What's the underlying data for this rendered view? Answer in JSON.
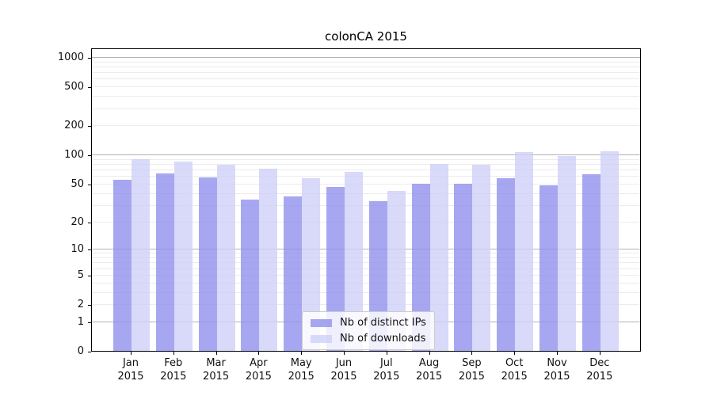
{
  "title": "colonCA 2015",
  "chart_data": {
    "type": "bar",
    "title": "colonCA 2015",
    "categories": [
      "Jan",
      "Feb",
      "Mar",
      "Apr",
      "May",
      "Jun",
      "Jul",
      "Aug",
      "Sep",
      "Oct",
      "Nov",
      "Dec"
    ],
    "year_label": "2015",
    "series": [
      {
        "name": "Nb of distinct IPs",
        "color": "rgba(145,145,238,0.8)",
        "values": [
          55,
          64,
          58,
          34,
          37,
          46,
          33,
          50,
          50,
          57,
          48,
          63
        ]
      },
      {
        "name": "Nb of downloads",
        "color": "rgba(208,208,248,0.8)",
        "values": [
          90,
          85,
          78,
          71,
          57,
          66,
          42,
          80,
          78,
          107,
          97,
          108
        ]
      }
    ],
    "yscale": "log1p",
    "yticks": [
      0,
      1,
      2,
      5,
      10,
      20,
      50,
      100,
      200,
      500,
      1000
    ],
    "major_gridlines": [
      1,
      10,
      100,
      1000
    ],
    "ylim": [
      0,
      1250
    ],
    "grid": true,
    "legend_position": "lower center"
  }
}
